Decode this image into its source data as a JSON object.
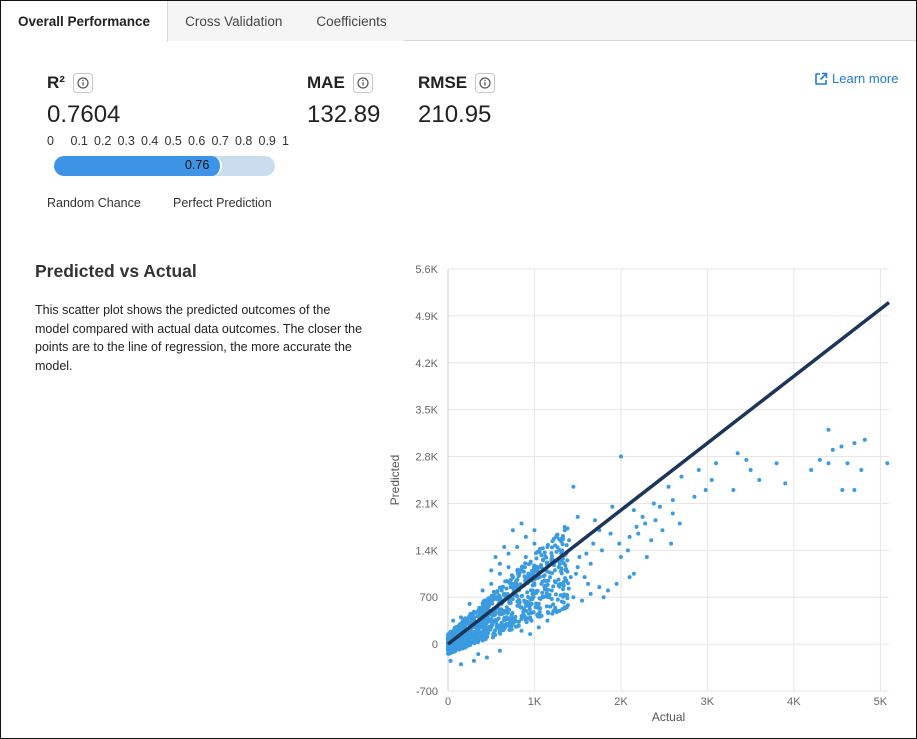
{
  "tabs": [
    {
      "label": "Overall Performance",
      "active": true
    },
    {
      "label": "Cross Validation",
      "active": false
    },
    {
      "label": "Coefficients",
      "active": false
    }
  ],
  "metrics": {
    "r2": {
      "label": "R²",
      "value": "0.7604"
    },
    "mae": {
      "label": "MAE",
      "value": "132.89"
    },
    "rmse": {
      "label": "RMSE",
      "value": "210.95"
    }
  },
  "r2_scale": {
    "ticks": [
      "0",
      "0.1",
      "0.2",
      "0.3",
      "0.4",
      "0.5",
      "0.6",
      "0.7",
      "0.8",
      "0.9",
      "1"
    ],
    "fraction": 0.76,
    "bar_label": "0.76",
    "low_caption": "Random Chance",
    "high_caption": "Perfect Prediction"
  },
  "learn_more": {
    "label": "Learn more"
  },
  "section": {
    "title": "Predicted vs Actual",
    "description": "This scatter plot shows the predicted outcomes of the model compared with actual data outcomes. The closer the points are to the line of regression, the more accurate the model."
  },
  "colors": {
    "points": "#3a9be0",
    "regression_line": "#1c3558",
    "bar_fill": "#3d94e6",
    "bar_track": "#c9ddef",
    "link": "#1f7bd6"
  },
  "chart_data": {
    "type": "scatter",
    "xlabel": "Actual",
    "ylabel": "Predicted",
    "xlim": [
      0,
      5100
    ],
    "ylim": [
      -700,
      5600
    ],
    "x_ticks": [
      {
        "value": 0,
        "label": "0"
      },
      {
        "value": 1000,
        "label": "1K"
      },
      {
        "value": 2000,
        "label": "2K"
      },
      {
        "value": 3000,
        "label": "3K"
      },
      {
        "value": 4000,
        "label": "4K"
      },
      {
        "value": 5000,
        "label": "5K"
      }
    ],
    "y_ticks": [
      {
        "value": -700,
        "label": "-700"
      },
      {
        "value": 0,
        "label": "0"
      },
      {
        "value": 700,
        "label": "700"
      },
      {
        "value": 1400,
        "label": "1.4K"
      },
      {
        "value": 2100,
        "label": "2.1K"
      },
      {
        "value": 2800,
        "label": "2.8K"
      },
      {
        "value": 3500,
        "label": "3.5K"
      },
      {
        "value": 4200,
        "label": "4.2K"
      },
      {
        "value": 4900,
        "label": "4.9K"
      },
      {
        "value": 5600,
        "label": "5.6K"
      }
    ],
    "grid": true,
    "regression_line": {
      "x": [
        0,
        5100
      ],
      "y": [
        0,
        5100
      ]
    },
    "series": [
      {
        "points": [
          [
            4400,
            3200
          ],
          [
            4450,
            2900
          ],
          [
            4550,
            2950
          ],
          [
            4620,
            2700
          ],
          [
            4700,
            3000
          ],
          [
            4780,
            2600
          ],
          [
            4820,
            3050
          ],
          [
            5080,
            2700
          ],
          [
            4300,
            2750
          ],
          [
            4200,
            2600
          ],
          [
            4400,
            2700
          ],
          [
            4560,
            2300
          ],
          [
            4700,
            2300
          ],
          [
            3800,
            2700
          ],
          [
            3900,
            2400
          ],
          [
            3600,
            2450
          ],
          [
            3350,
            2850
          ],
          [
            3450,
            2750
          ],
          [
            3500,
            2600
          ],
          [
            3300,
            2300
          ],
          [
            3100,
            2700
          ],
          [
            3050,
            2450
          ],
          [
            2900,
            2600
          ],
          [
            2980,
            2300
          ],
          [
            2850,
            2200
          ],
          [
            2700,
            2500
          ],
          [
            2600,
            2150
          ],
          [
            2550,
            2350
          ],
          [
            2600,
            1950
          ],
          [
            2450,
            2050
          ],
          [
            2400,
            1850
          ],
          [
            2350,
            1550
          ],
          [
            2250,
            1900
          ],
          [
            2150,
            2000
          ],
          [
            2050,
            2050
          ],
          [
            2000,
            2800
          ],
          [
            2100,
            1600
          ],
          [
            2200,
            1650
          ],
          [
            2300,
            1300
          ],
          [
            2100,
            1000
          ],
          [
            2150,
            1050
          ],
          [
            1950,
            900
          ],
          [
            1850,
            800
          ],
          [
            1800,
            700
          ],
          [
            2000,
            1300
          ],
          [
            1700,
            1850
          ],
          [
            1650,
            1200
          ],
          [
            1600,
            1350
          ],
          [
            1500,
            1900
          ],
          [
            1500,
            1150
          ],
          [
            1450,
            2350
          ],
          [
            1400,
            1550
          ],
          [
            1350,
            1700
          ],
          [
            1300,
            900
          ],
          [
            1250,
            1600
          ],
          [
            1200,
            800
          ],
          [
            1150,
            1450
          ],
          [
            1100,
            700
          ],
          [
            1100,
            1250
          ],
          [
            1050,
            600
          ],
          [
            1000,
            1500
          ],
          [
            950,
            400
          ],
          [
            900,
            1300
          ],
          [
            850,
            550
          ],
          [
            800,
            1100
          ],
          [
            750,
            900
          ],
          [
            700,
            300
          ],
          [
            700,
            1150
          ],
          [
            650,
            750
          ],
          [
            600,
            1050
          ],
          [
            550,
            450
          ],
          [
            500,
            900
          ],
          [
            500,
            250
          ],
          [
            450,
            650
          ],
          [
            400,
            800
          ],
          [
            380,
            150
          ],
          [
            350,
            500
          ],
          [
            300,
            350
          ],
          [
            250,
            600
          ],
          [
            250,
            100
          ],
          [
            200,
            250
          ],
          [
            150,
            400
          ],
          [
            120,
            50
          ],
          [
            100,
            200
          ],
          [
            80,
            -100
          ],
          [
            60,
            350
          ],
          [
            50,
            100
          ],
          [
            30,
            -250
          ],
          [
            20,
            50
          ],
          [
            10,
            150
          ],
          [
            200,
            -50
          ],
          [
            350,
            -150
          ],
          [
            450,
            -200
          ],
          [
            300,
            -250
          ],
          [
            150,
            -300
          ],
          [
            600,
            -100
          ],
          [
            520,
            100
          ],
          [
            680,
            550
          ],
          [
            780,
            350
          ],
          [
            880,
            650
          ],
          [
            980,
            800
          ],
          [
            1080,
            900
          ],
          [
            1180,
            1000
          ],
          [
            1280,
            1150
          ],
          [
            1380,
            1250
          ],
          [
            1480,
            1050
          ],
          [
            1580,
            1000
          ],
          [
            1680,
            1500
          ],
          [
            1780,
            1400
          ],
          [
            1880,
            1650
          ],
          [
            1980,
            1500
          ],
          [
            2080,
            1400
          ],
          [
            2180,
            1750
          ],
          [
            2280,
            1800
          ],
          [
            2380,
            2100
          ],
          [
            2480,
            1700
          ],
          [
            2580,
            1500
          ],
          [
            2680,
            1800
          ],
          [
            1900,
            2050
          ],
          [
            1750,
            1700
          ],
          [
            1620,
            900
          ],
          [
            1520,
            1300
          ],
          [
            1420,
            1000
          ],
          [
            1320,
            1400
          ],
          [
            1220,
            1200
          ],
          [
            1120,
            950
          ],
          [
            1020,
            1100
          ],
          [
            920,
            1000
          ],
          [
            820,
            800
          ],
          [
            720,
            700
          ],
          [
            620,
            600
          ],
          [
            560,
            700
          ],
          [
            480,
            500
          ],
          [
            420,
            400
          ],
          [
            360,
            300
          ],
          [
            320,
            250
          ],
          [
            270,
            200
          ],
          [
            230,
            150
          ],
          [
            180,
            100
          ],
          [
            140,
            80
          ],
          [
            1150,
            350
          ],
          [
            1250,
            500
          ],
          [
            1050,
            250
          ],
          [
            950,
            150
          ],
          [
            850,
            200
          ],
          [
            1350,
            550
          ],
          [
            1450,
            700
          ],
          [
            1550,
            650
          ],
          [
            1650,
            750
          ],
          [
            1750,
            850
          ],
          [
            600,
            1200
          ],
          [
            700,
            1350
          ],
          [
            800,
            1450
          ],
          [
            900,
            1600
          ],
          [
            1000,
            1700
          ],
          [
            750,
            1700
          ],
          [
            850,
            1800
          ],
          [
            650,
            1450
          ],
          [
            550,
            1300
          ],
          [
            500,
            1100
          ]
        ]
      }
    ]
  }
}
